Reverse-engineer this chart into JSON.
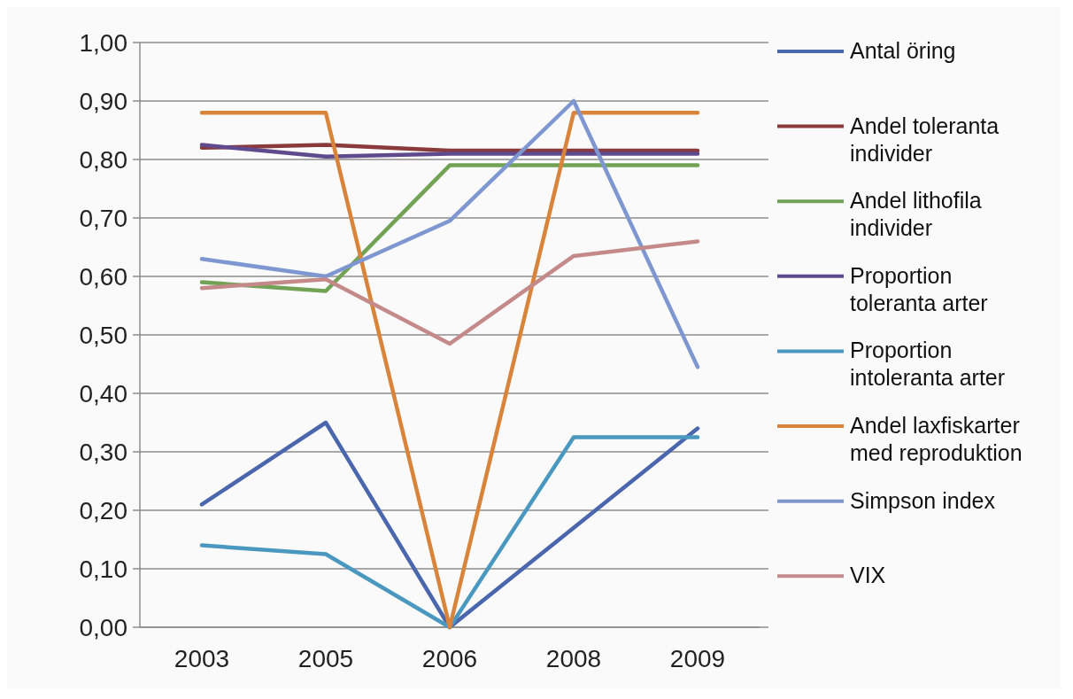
{
  "chart_data": {
    "type": "line",
    "categories": [
      "2003",
      "2005",
      "2006",
      "2008",
      "2009"
    ],
    "series": [
      {
        "name": "Antal öring",
        "color": "#4a66ac",
        "values": [
          0.21,
          0.35,
          0,
          0.17,
          0.34
        ]
      },
      {
        "name": "Andel toleranta individer",
        "color": "#8b3a3c",
        "values": [
          0.82,
          0.825,
          0.815,
          0.815,
          0.815
        ]
      },
      {
        "name": "Andel lithofila individer",
        "color": "#72a254",
        "values": [
          0.59,
          0.575,
          0.79,
          0.79,
          0.79
        ]
      },
      {
        "name": "Proportion toleranta arter",
        "color": "#5e4a8c",
        "values": [
          0.825,
          0.805,
          0.81,
          0.81,
          0.81
        ]
      },
      {
        "name": "Proportion intoleranta arter",
        "color": "#4a98c0",
        "values": [
          0.14,
          0.125,
          0,
          0.325,
          0.325
        ]
      },
      {
        "name": "Andel laxfiskarter med reproduktion",
        "color": "#d9843b",
        "values": [
          0.88,
          0.88,
          0,
          0.88,
          0.88
        ]
      },
      {
        "name": "Simpson index",
        "color": "#7f97d0",
        "values": [
          0.63,
          0.6,
          0.695,
          0.9,
          0.445
        ]
      },
      {
        "name": "VIX",
        "color": "#c48a8a",
        "values": [
          0.58,
          0.595,
          0.485,
          0.635,
          0.66
        ]
      }
    ],
    "ylim": [
      0,
      1
    ],
    "yticks": [
      {
        "value": 0,
        "label": "0,00"
      },
      {
        "value": 0.1,
        "label": "0,10"
      },
      {
        "value": 0.2,
        "label": "0,20"
      },
      {
        "value": 0.3,
        "label": "0,30"
      },
      {
        "value": 0.4,
        "label": "0,40"
      },
      {
        "value": 0.5,
        "label": "0,50"
      },
      {
        "value": 0.6,
        "label": "0,60"
      },
      {
        "value": 0.7,
        "label": "0,70"
      },
      {
        "value": 0.8,
        "label": "0,80"
      },
      {
        "value": 0.9,
        "label": "0,90"
      },
      {
        "value": 1,
        "label": "1,00"
      }
    ],
    "grid": "y",
    "legend": "right",
    "marker": "none",
    "line_style": "solid"
  }
}
